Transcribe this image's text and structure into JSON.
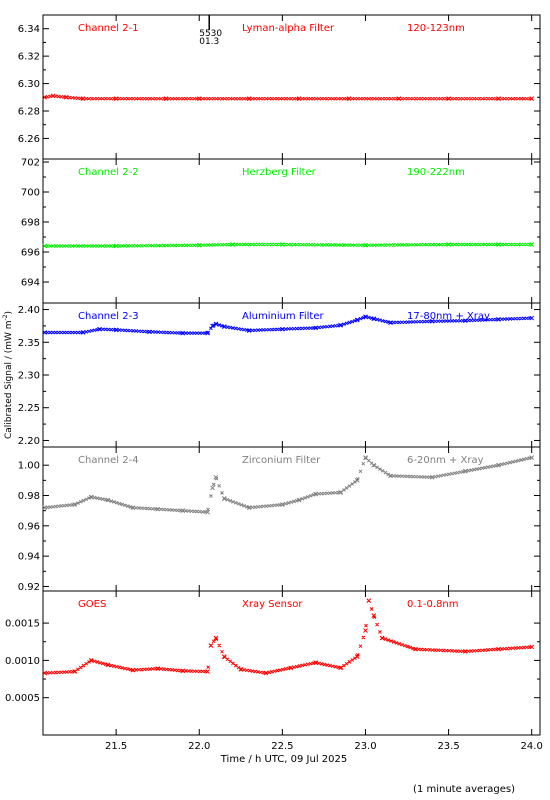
{
  "ylabel": "Calibrated Signal / (mW m",
  "ylabel_sup": "-2",
  "ylabel_end": ")",
  "xlabel": "Time / h UTC, 09 Jul 2025",
  "footnote": "(1 minute averages)",
  "marker": {
    "x": 22.06,
    "labels": [
      "5530",
      "01.3"
    ]
  },
  "x_axis": {
    "range": [
      21.06,
      24.05
    ],
    "ticks": [
      21.5,
      22.0,
      22.5,
      23.0,
      23.5,
      24.0
    ],
    "tick_labels": [
      "21.5",
      "22.0",
      "22.5",
      "23.0",
      "23.5",
      "24.0"
    ]
  },
  "chart_data": [
    {
      "type": "scatter",
      "color": "#ff0000",
      "labels": [
        "Channel 2-1",
        "Lyman-alpha Filter",
        "120-123nm"
      ],
      "ylim": [
        6.245,
        6.35
      ],
      "yticks": [
        6.26,
        6.28,
        6.3,
        6.32,
        6.34
      ],
      "ytick_labels": [
        "6.26",
        "6.28",
        "6.30",
        "6.32",
        "6.34"
      ],
      "x": [
        21.07,
        21.12,
        21.2,
        21.3,
        21.5,
        21.8,
        22.0,
        22.3,
        22.6,
        22.9,
        23.2,
        23.5,
        23.8,
        24.0
      ],
      "y": [
        6.29,
        6.291,
        6.29,
        6.289,
        6.289,
        6.289,
        6.289,
        6.289,
        6.289,
        6.289,
        6.289,
        6.289,
        6.289,
        6.289
      ]
    },
    {
      "type": "scatter",
      "color": "#00ee00",
      "labels": [
        "Channel 2-2",
        "Herzberg Filter",
        "190-222nm"
      ],
      "ylim": [
        692.6,
        702.2
      ],
      "yticks": [
        694,
        696,
        698,
        700,
        702
      ],
      "ytick_labels": [
        "694",
        "696",
        "698",
        "700",
        "702"
      ],
      "x": [
        21.07,
        21.5,
        22.0,
        22.2,
        22.5,
        23.0,
        23.5,
        23.8,
        24.0
      ],
      "y": [
        696.4,
        696.4,
        696.45,
        696.5,
        696.5,
        696.45,
        696.5,
        696.5,
        696.5
      ]
    },
    {
      "type": "scatter",
      "color": "#0000ff",
      "labels": [
        "Channel 2-3",
        "Aluminium Filter",
        "17-80nm + Xray"
      ],
      "ylim": [
        2.19,
        2.41
      ],
      "yticks": [
        2.2,
        2.25,
        2.3,
        2.35,
        2.4
      ],
      "ytick_labels": [
        "2.20",
        "2.25",
        "2.30",
        "2.35",
        "2.40"
      ],
      "x": [
        21.07,
        21.3,
        21.4,
        21.5,
        21.7,
        21.9,
        22.05,
        22.08,
        22.1,
        22.15,
        22.3,
        22.5,
        22.7,
        22.85,
        22.95,
        23.0,
        23.05,
        23.15,
        23.4,
        23.6,
        23.8,
        24.0
      ],
      "y": [
        2.365,
        2.365,
        2.37,
        2.369,
        2.366,
        2.364,
        2.364,
        2.375,
        2.378,
        2.374,
        2.368,
        2.37,
        2.372,
        2.376,
        2.384,
        2.389,
        2.386,
        2.38,
        2.382,
        2.383,
        2.385,
        2.387
      ]
    },
    {
      "type": "scatter",
      "color": "#808080",
      "labels": [
        "Channel 2-4",
        "Zirconium Filter",
        "6-20nm + Xray"
      ],
      "ylim": [
        0.917,
        1.012
      ],
      "yticks": [
        0.92,
        0.94,
        0.96,
        0.98,
        1.0
      ],
      "ytick_labels": [
        "0.92",
        "0.94",
        "0.96",
        "0.98",
        "1.00"
      ],
      "x": [
        21.07,
        21.25,
        21.35,
        21.45,
        21.6,
        21.75,
        21.9,
        22.05,
        22.08,
        22.1,
        22.15,
        22.3,
        22.5,
        22.6,
        22.7,
        22.85,
        22.95,
        23.0,
        23.05,
        23.15,
        23.4,
        23.6,
        23.8,
        24.0
      ],
      "y": [
        0.972,
        0.974,
        0.979,
        0.977,
        0.972,
        0.971,
        0.97,
        0.969,
        0.985,
        0.992,
        0.978,
        0.972,
        0.974,
        0.977,
        0.981,
        0.982,
        0.99,
        1.005,
        1.0,
        0.993,
        0.992,
        0.996,
        1.0,
        1.005
      ]
    },
    {
      "type": "scatter",
      "color": "#ff0000",
      "labels": [
        "GOES",
        "Xray Sensor",
        "0.1-0.8nm"
      ],
      "ylim": [
        0.0,
        0.00193
      ],
      "yticks": [
        0.0005,
        0.001,
        0.0015
      ],
      "ytick_labels": [
        "0.0005",
        "0.0010",
        "0.0015"
      ],
      "x": [
        21.07,
        21.25,
        21.35,
        21.45,
        21.6,
        21.75,
        21.9,
        22.05,
        22.07,
        22.1,
        22.15,
        22.25,
        22.4,
        22.55,
        22.7,
        22.85,
        22.95,
        23.0,
        23.02,
        23.05,
        23.1,
        23.3,
        23.6,
        23.8,
        24.0
      ],
      "y": [
        0.00083,
        0.00085,
        0.001,
        0.00094,
        0.00087,
        0.00089,
        0.00086,
        0.00085,
        0.0012,
        0.0013,
        0.00105,
        0.00088,
        0.00083,
        0.0009,
        0.00097,
        0.0009,
        0.00105,
        0.0014,
        0.0018,
        0.0016,
        0.0013,
        0.00115,
        0.00112,
        0.00115,
        0.00118
      ]
    }
  ]
}
